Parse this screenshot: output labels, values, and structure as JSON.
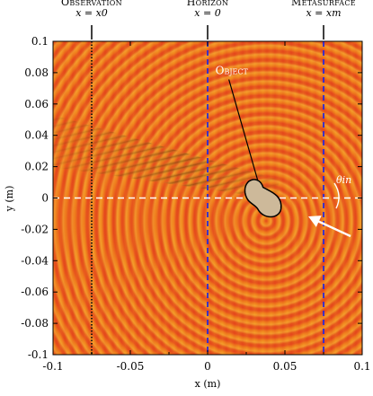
{
  "chart_data": {
    "type": "heatmap",
    "xlabel": "x (m)",
    "ylabel": "y (m)",
    "xlim": [
      -0.1,
      0.1
    ],
    "ylim": [
      -0.1,
      0.1
    ],
    "x_ticks": [
      "-0.1",
      "-0.05",
      "0",
      "0.05",
      "0.1"
    ],
    "x_tick_values": [
      -0.1,
      -0.05,
      0,
      0.05,
      0.1
    ],
    "y_ticks": [
      "0.1",
      "0.08",
      "0.06",
      "0.04",
      "0.02",
      "0",
      "-0.02",
      "-0.04",
      "-0.06",
      "-0.08",
      "-0.1"
    ],
    "y_tick_values": [
      0.1,
      0.08,
      0.06,
      0.04,
      0.02,
      0,
      -0.02,
      -0.04,
      -0.06,
      -0.08,
      -0.1
    ],
    "planes": [
      {
        "name_label": "Observation",
        "eq_label": "x = x0",
        "x": -0.075,
        "style": "dotted",
        "color": "#111111"
      },
      {
        "name_label": "Horizon",
        "eq_label": "x = 0",
        "x": 0.0,
        "style": "dashed",
        "color": "#2b2bd6"
      },
      {
        "name_label": "Metasurface",
        "eq_label": "x = xm",
        "x": 0.075,
        "style": "dashed",
        "color": "#2b2bd6"
      }
    ],
    "object": {
      "label": "Object",
      "center_x": 0.037,
      "center_y": 0.0,
      "fill": "#cdb99a"
    },
    "incidence_label": "θin",
    "source_point": {
      "x": 0.037,
      "y": -0.014
    },
    "colormap": [
      "#d93a1c",
      "#f07a1a",
      "#f7b53a"
    ]
  }
}
